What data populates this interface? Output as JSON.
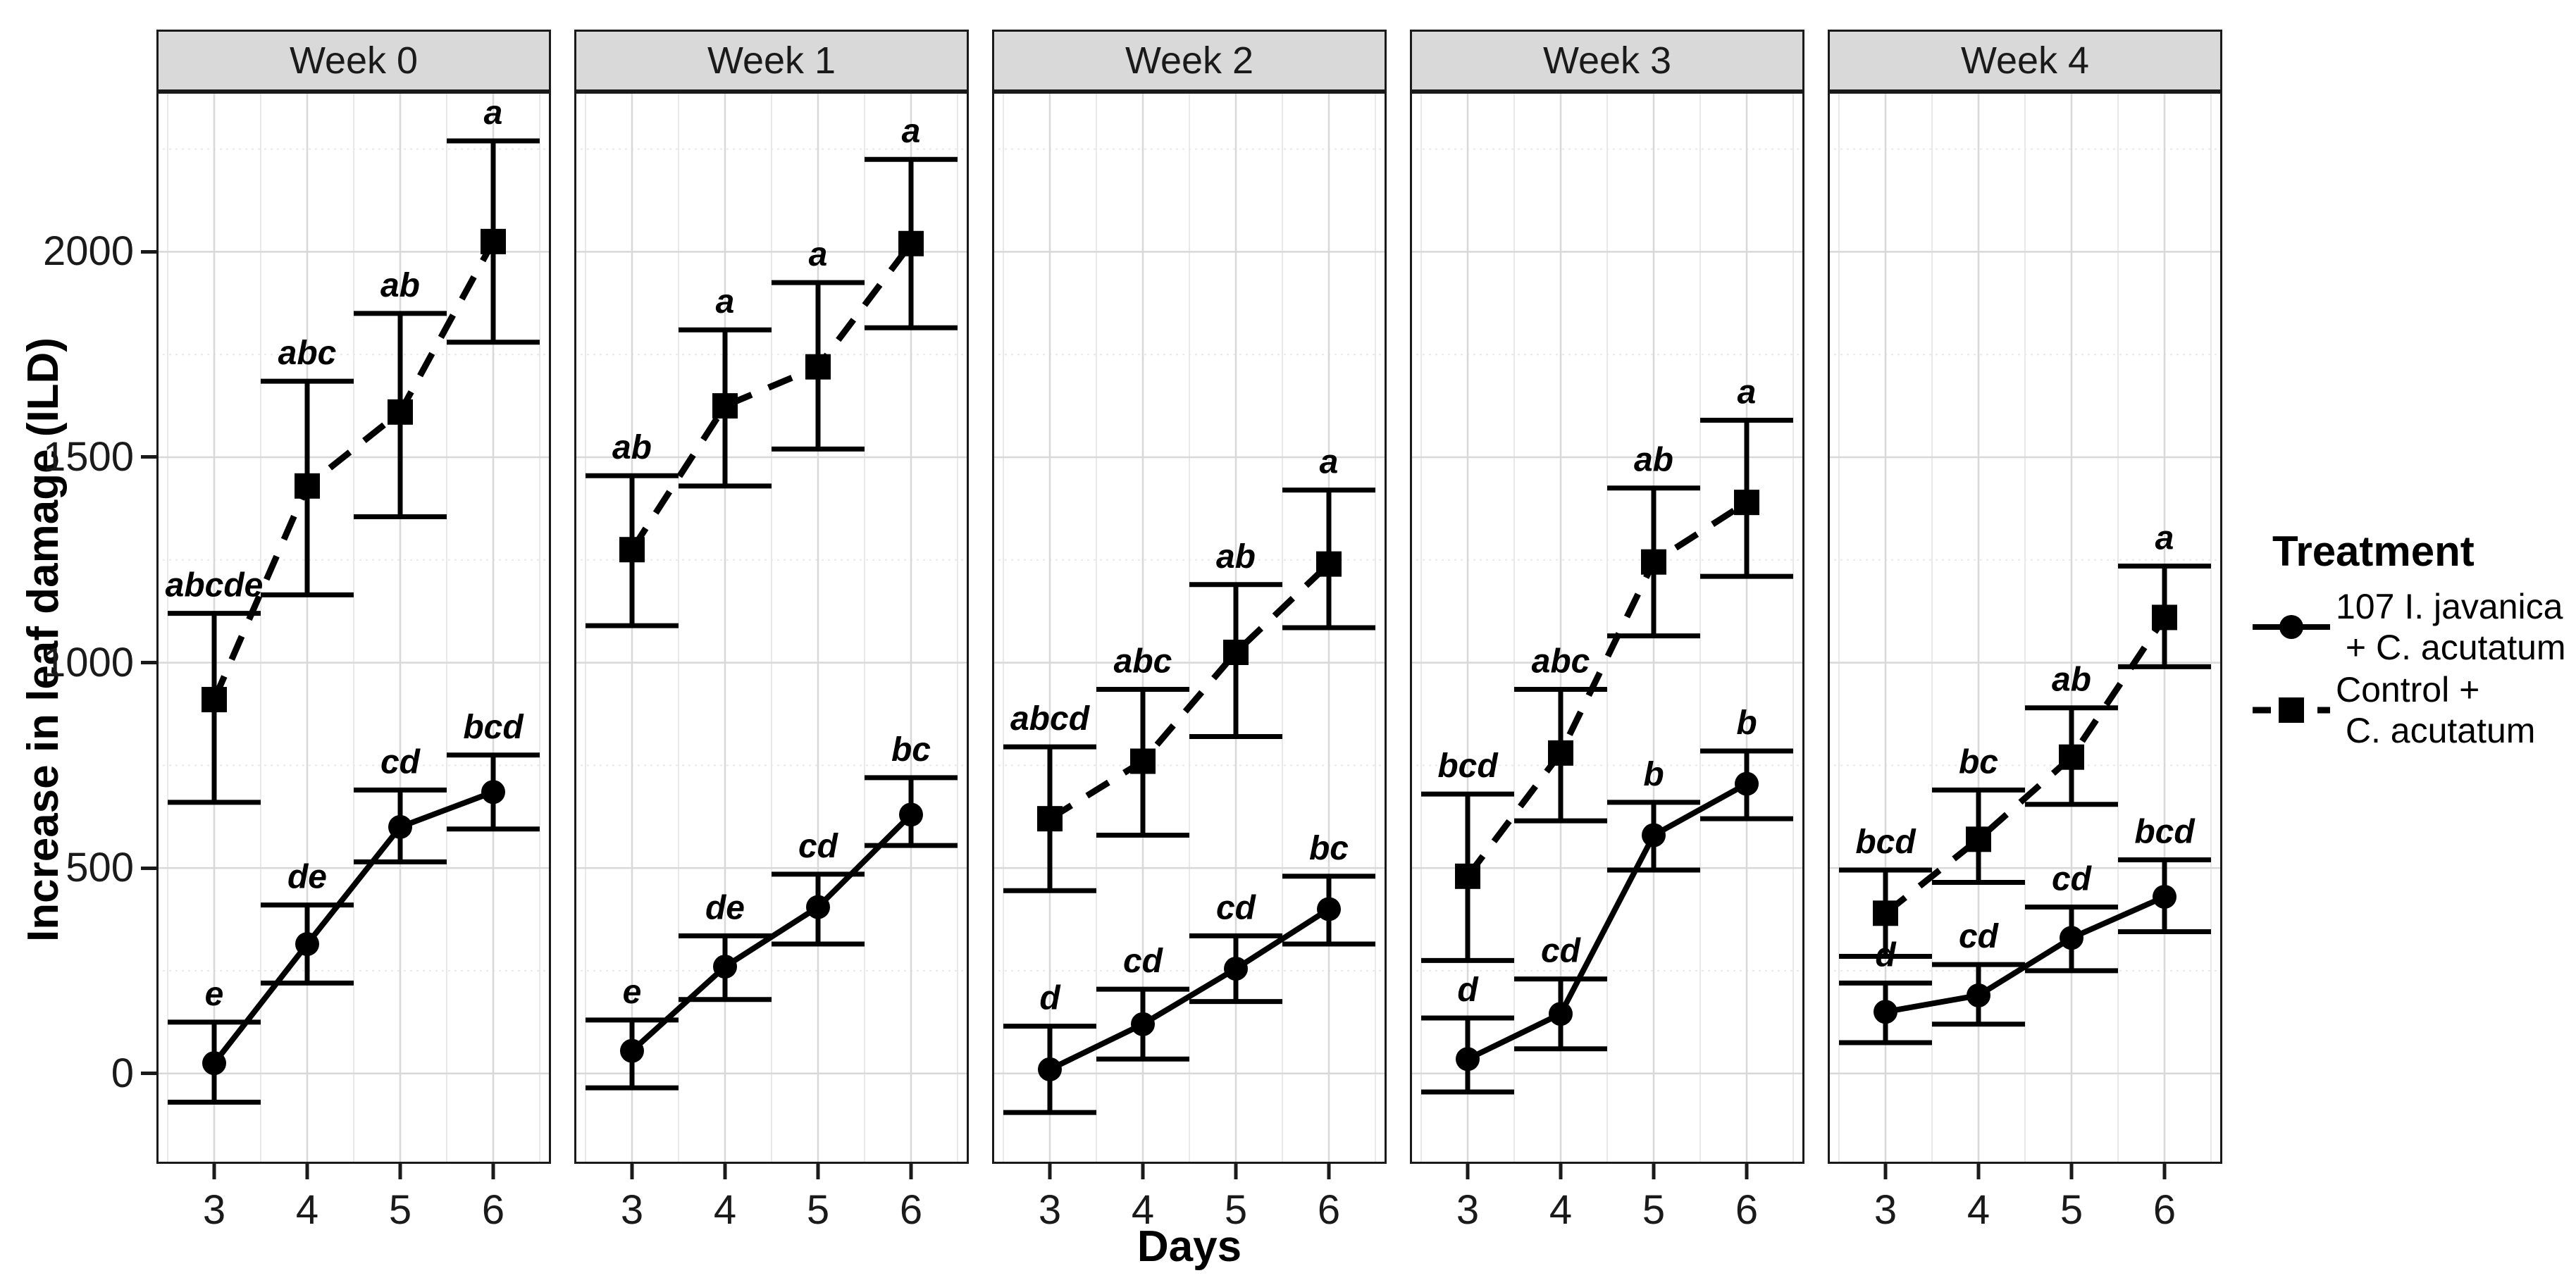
{
  "figure": {
    "y_axis_title": "Increase in leaf damage (ILD)",
    "x_axis_title": "Days",
    "colors": {
      "foreground": "#000000",
      "panel_border": "#1a1a1a",
      "strip_background": "#d9d9d9",
      "grid_major": "#d8d8d8",
      "grid_minor": "#e9e9e9",
      "background": "#ffffff"
    }
  },
  "legend": {
    "title": "Treatment",
    "entries": [
      {
        "label_line1": "107 I. javanica",
        "label_line2": " + C. acutatum",
        "marker": "circle-icon",
        "line": "solid"
      },
      {
        "label_line1": "Control +",
        "label_line2": " C. acutatum",
        "marker": "square-icon",
        "line": "dashed"
      }
    ]
  },
  "chart_data": {
    "type": "line",
    "title": "",
    "xlabel": "Days",
    "ylabel": "Increase in leaf damage (ILD)",
    "x": [
      3,
      4,
      5,
      6
    ],
    "x_ticks": [
      3,
      4,
      5,
      6
    ],
    "y_ticks": [
      0,
      500,
      1000,
      1500,
      2000
    ],
    "ylim": [
      -220,
      2390
    ],
    "grid": {
      "major_y": [
        0,
        500,
        1000,
        1500,
        2000
      ],
      "minor_y": [
        250,
        750,
        1250,
        1750,
        2250
      ],
      "major_x": [
        3,
        4,
        5,
        6
      ],
      "minor_x": [
        2.5,
        3.5,
        4.5,
        5.5,
        6.5
      ]
    },
    "legend_position": "right",
    "error_bars": "95% CI",
    "facets": [
      {
        "label": "Week 0",
        "series": [
          {
            "name": "107 I. javanica + C. acutatum",
            "style": "solid-circle",
            "means": [
              25,
              315,
              600,
              685
            ],
            "ci_low": [
              -70,
              220,
              515,
              595
            ],
            "ci_high": [
              125,
              410,
              690,
              775
            ],
            "letters": [
              "e",
              "de",
              "cd",
              "bcd"
            ]
          },
          {
            "name": "Control + C. acutatum",
            "style": "dashed-square",
            "means": [
              910,
              1430,
              1610,
              2025
            ],
            "ci_low": [
              660,
              1165,
              1355,
              1780
            ],
            "ci_high": [
              1120,
              1685,
              1850,
              2270
            ],
            "letters": [
              "abcde",
              "abc",
              "ab",
              "a"
            ]
          }
        ]
      },
      {
        "label": "Week 1",
        "series": [
          {
            "name": "107 I. javanica + C. acutatum",
            "style": "solid-circle",
            "means": [
              55,
              260,
              405,
              630
            ],
            "ci_low": [
              -35,
              180,
              315,
              555
            ],
            "ci_high": [
              130,
              335,
              485,
              720
            ],
            "letters": [
              "e",
              "de",
              "cd",
              "bc"
            ]
          },
          {
            "name": "Control + C. acutatum",
            "style": "dashed-square",
            "means": [
              1275,
              1625,
              1720,
              2020
            ],
            "ci_low": [
              1090,
              1430,
              1520,
              1815
            ],
            "ci_high": [
              1455,
              1810,
              1925,
              2225
            ],
            "letters": [
              "ab",
              "a",
              "a",
              "a"
            ]
          }
        ]
      },
      {
        "label": "Week 2",
        "series": [
          {
            "name": "107 I. javanica + C. acutatum",
            "style": "solid-circle",
            "means": [
              10,
              120,
              255,
              400
            ],
            "ci_low": [
              -95,
              35,
              175,
              315
            ],
            "ci_high": [
              115,
              205,
              335,
              480
            ],
            "letters": [
              "d",
              "cd",
              "cd",
              "bc"
            ]
          },
          {
            "name": "Control + C. acutatum",
            "style": "dashed-square",
            "means": [
              620,
              760,
              1025,
              1240
            ],
            "ci_low": [
              445,
              580,
              820,
              1085
            ],
            "ci_high": [
              795,
              935,
              1190,
              1420
            ],
            "letters": [
              "abcd",
              "abc",
              "ab",
              "a"
            ]
          }
        ]
      },
      {
        "label": "Week 3",
        "series": [
          {
            "name": "107 I. javanica + C. acutatum",
            "style": "solid-circle",
            "means": [
              35,
              145,
              580,
              705
            ],
            "ci_low": [
              -45,
              60,
              495,
              620
            ],
            "ci_high": [
              135,
              230,
              660,
              785
            ],
            "letters": [
              "d",
              "cd",
              "b",
              "b"
            ]
          },
          {
            "name": "Control + C. acutatum",
            "style": "dashed-square",
            "means": [
              480,
              780,
              1245,
              1390
            ],
            "ci_low": [
              275,
              615,
              1065,
              1210
            ],
            "ci_high": [
              680,
              935,
              1425,
              1590
            ],
            "letters": [
              "bcd",
              "abc",
              "ab",
              "a"
            ]
          }
        ]
      },
      {
        "label": "Week 4",
        "series": [
          {
            "name": "107 I. javanica + C. acutatum",
            "style": "solid-circle",
            "means": [
              150,
              190,
              330,
              430
            ],
            "ci_low": [
              75,
              120,
              250,
              345
            ],
            "ci_high": [
              220,
              265,
              405,
              520
            ],
            "letters": [
              "d",
              "cd",
              "cd",
              "bcd"
            ]
          },
          {
            "name": "Control + C. acutatum",
            "style": "dashed-square",
            "means": [
              390,
              570,
              770,
              1110
            ],
            "ci_low": [
              285,
              465,
              655,
              990
            ],
            "ci_high": [
              495,
              690,
              890,
              1235
            ],
            "letters": [
              "bcd",
              "bc",
              "ab",
              "a"
            ]
          }
        ]
      }
    ]
  }
}
